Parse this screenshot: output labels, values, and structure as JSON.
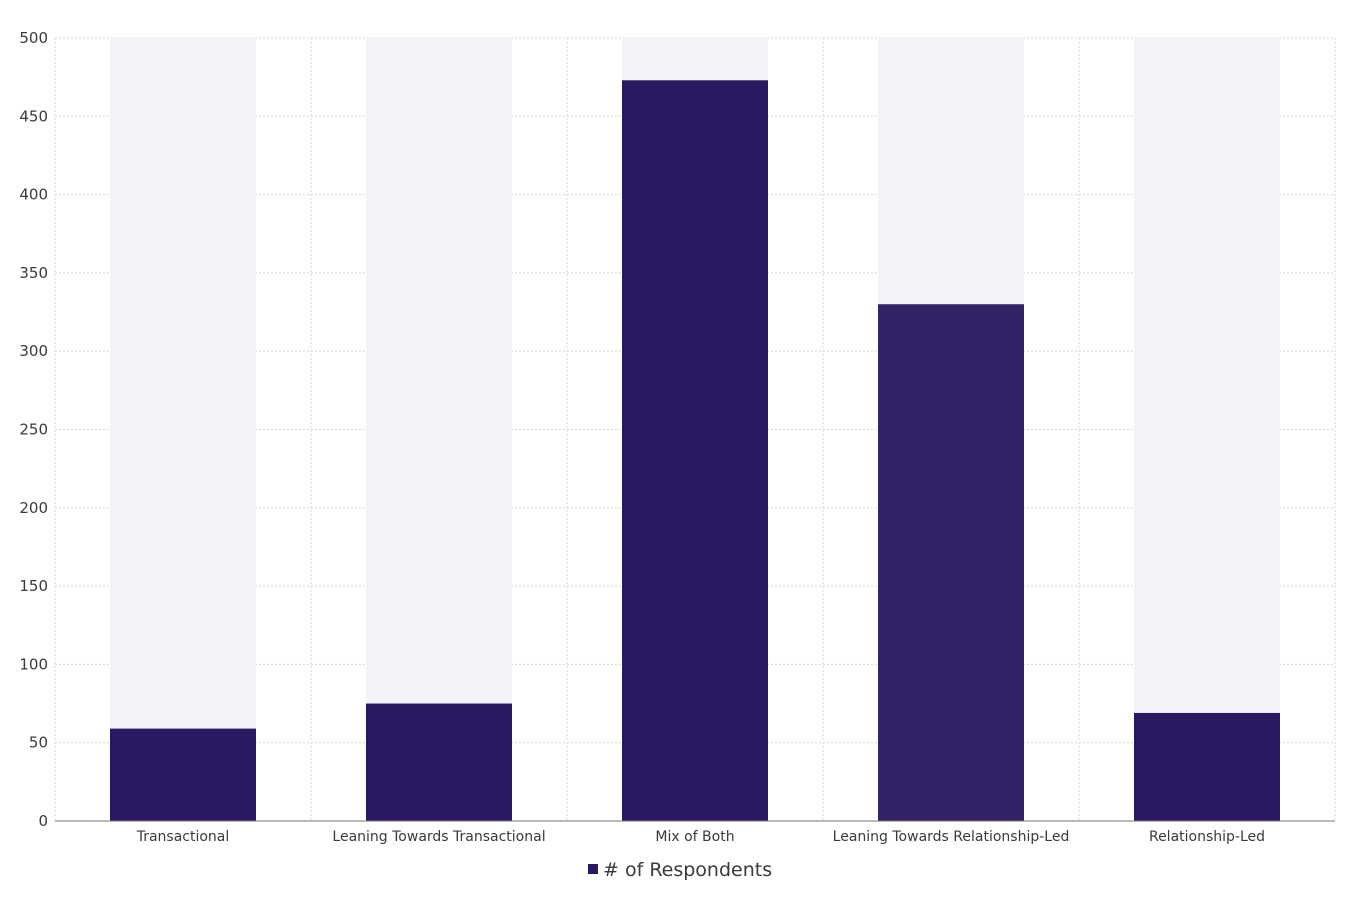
{
  "chart_data": {
    "type": "bar",
    "categories": [
      "Transactional",
      "Leaning Towards Transactional",
      "Mix of Both",
      "Leaning Towards Relationship-Led",
      "Relationship-Led"
    ],
    "series": [
      {
        "name": "# of Respondents",
        "values": [
          59,
          75,
          473,
          330,
          69
        ]
      }
    ],
    "ylim": [
      0,
      500
    ],
    "yticks": [
      0,
      50,
      100,
      150,
      200,
      250,
      300,
      350,
      400,
      450,
      500
    ],
    "grid": true,
    "legend_position": "bottom-center",
    "colors": {
      "bar": "#2b1862",
      "bar_highlight": "#332366",
      "bar_background": "#f2f3f9",
      "grid": "#d8d8d8",
      "axis": "#777777"
    }
  }
}
